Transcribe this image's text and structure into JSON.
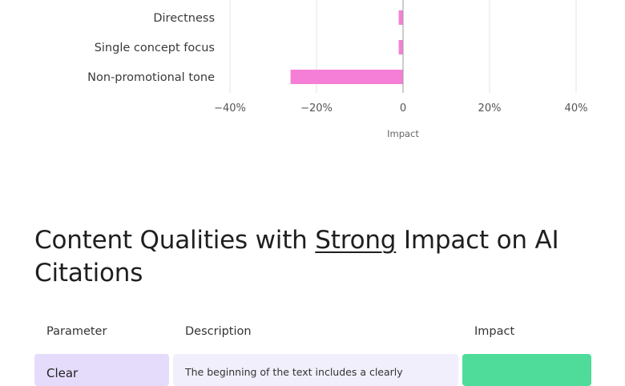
{
  "chart_data": {
    "type": "bar",
    "orientation": "horizontal",
    "categories": [
      "Directness",
      "Single concept focus",
      "Non-promotional tone"
    ],
    "values": [
      -1,
      -1,
      -26
    ],
    "xlim": [
      -40,
      40
    ],
    "xticks": [
      -40,
      -20,
      0,
      20,
      40
    ],
    "xtick_labels": [
      "−40%",
      "−20%",
      "0",
      "20%",
      "40%"
    ],
    "xlabel": "Impact",
    "grid": true,
    "bar_color": "#f57fd6"
  },
  "section": {
    "heading_pre": "Content Qualities with ",
    "heading_em": "Strong",
    "heading_post": " Impact on AI Citations"
  },
  "table": {
    "headers": [
      "Parameter",
      "Description",
      "Impact"
    ],
    "first_row": {
      "parameter": "Clear",
      "description": "The beginning of the text includes a clearly",
      "parameter_color": "#e5dcfb",
      "description_color": "#f1effb",
      "impact_color": "#4fdb9a"
    }
  }
}
